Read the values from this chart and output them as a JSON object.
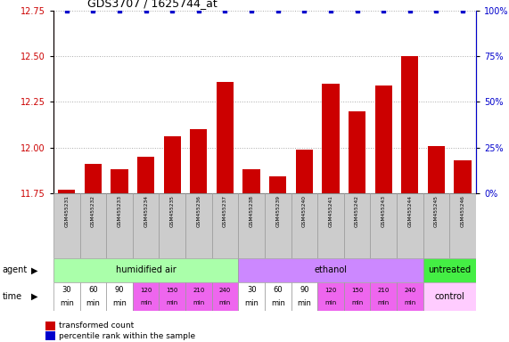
{
  "title": "GDS3707 / 1625744_at",
  "samples": [
    "GSM455231",
    "GSM455232",
    "GSM455233",
    "GSM455234",
    "GSM455235",
    "GSM455236",
    "GSM455237",
    "GSM455238",
    "GSM455239",
    "GSM455240",
    "GSM455241",
    "GSM455242",
    "GSM455243",
    "GSM455244",
    "GSM455245",
    "GSM455246"
  ],
  "bar_values": [
    11.77,
    11.91,
    11.88,
    11.95,
    12.06,
    12.1,
    12.36,
    11.88,
    11.84,
    11.99,
    12.35,
    12.2,
    12.34,
    12.5,
    12.01,
    11.93
  ],
  "percentile_values": [
    100,
    100,
    100,
    100,
    100,
    100,
    100,
    100,
    100,
    100,
    100,
    100,
    100,
    100,
    100,
    100
  ],
  "ylim_left": [
    11.75,
    12.75
  ],
  "ylim_right": [
    0,
    100
  ],
  "yticks_left": [
    11.75,
    12.0,
    12.25,
    12.5,
    12.75
  ],
  "yticks_right": [
    0,
    25,
    50,
    75,
    100
  ],
  "bar_color": "#cc0000",
  "percentile_color": "#0000cc",
  "agent_groups": [
    {
      "label": "humidified air",
      "start": 0,
      "end": 7,
      "color": "#aaffaa"
    },
    {
      "label": "ethanol",
      "start": 7,
      "end": 14,
      "color": "#cc88ff"
    },
    {
      "label": "untreated",
      "start": 14,
      "end": 16,
      "color": "#44ee44"
    }
  ],
  "time_labels_full": [
    "30",
    "60",
    "90",
    "120",
    "150",
    "210",
    "240",
    "30",
    "60",
    "90",
    "120",
    "150",
    "210",
    "240"
  ],
  "time_colors_white": [
    0,
    1,
    2,
    7,
    8,
    9
  ],
  "time_colors_pink": [
    3,
    4,
    5,
    6,
    10,
    11,
    12,
    13
  ],
  "time_pink_color": "#ee66ee",
  "time_white_color": "#ffffff",
  "control_label": "control",
  "control_bg": "#ffccff",
  "agent_label": "agent",
  "time_label": "time",
  "legend_bar_label": "transformed count",
  "legend_dot_label": "percentile rank within the sample",
  "grid_color": "#aaaaaa",
  "axis_label_color_left": "#cc0000",
  "axis_label_color_right": "#0000cc",
  "sample_bg_color": "#cccccc",
  "sample_border_color": "#999999",
  "fig_width": 5.71,
  "fig_height": 3.84,
  "dpi": 100
}
